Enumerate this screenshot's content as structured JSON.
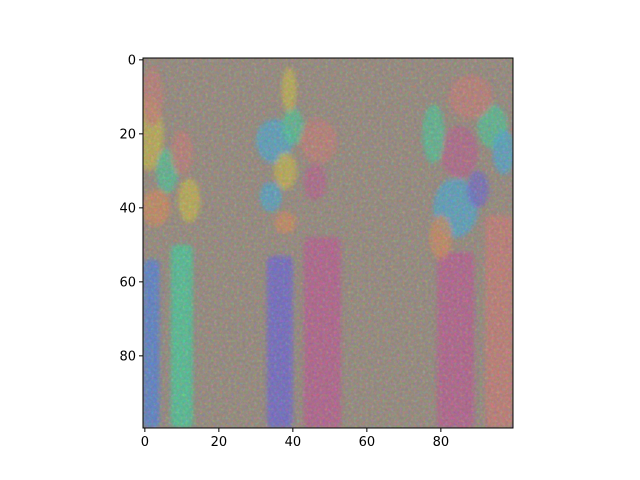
{
  "chart_data": {
    "type": "heatmap",
    "title": "",
    "xlabel": "",
    "ylabel": "",
    "xlim": [
      -0.5,
      99.5
    ],
    "ylim": [
      99.5,
      -0.5
    ],
    "y_axis_inverted": true,
    "grid": false,
    "x_ticks": [
      0,
      20,
      40,
      60,
      80
    ],
    "y_ticks": [
      0,
      20,
      40,
      60,
      80
    ],
    "x_tick_labels": [
      "0",
      "20",
      "40",
      "60",
      "80"
    ],
    "y_tick_labels": [
      "0",
      "20",
      "40",
      "60",
      "80"
    ],
    "image_shape": [
      100,
      100
    ],
    "colors": {
      "background": "#9a8a7a",
      "blue_streak": "#4a7fe0",
      "green_streak": "#3fd39a",
      "violet_streak": "#6a5fd8",
      "magenta_streak": "#c0558e",
      "salmon_streak": "#d07a70",
      "cyan_patch": "#3ab0e0",
      "yellow_patch": "#d6c23a",
      "orange_patch": "#e08a50"
    },
    "regions": [
      {
        "name": "left-blue-column",
        "x": [
          -0.5,
          4
        ],
        "y": [
          54,
          99.5
        ],
        "color": "blue_streak"
      },
      {
        "name": "left-green-column",
        "x": [
          7,
          13
        ],
        "y": [
          50,
          99.5
        ],
        "color": "green_streak"
      },
      {
        "name": "center-violet-column",
        "x": [
          33,
          40
        ],
        "y": [
          53,
          99.5
        ],
        "color": "violet_streak"
      },
      {
        "name": "center-magenta-column",
        "x": [
          43,
          53
        ],
        "y": [
          48,
          99.5
        ],
        "color": "magenta_streak"
      },
      {
        "name": "right-magenta-column",
        "x": [
          79,
          89
        ],
        "y": [
          52,
          99.5
        ],
        "color": "magenta_streak"
      },
      {
        "name": "right-salmon-column",
        "x": [
          92,
          99.5
        ],
        "y": [
          42,
          99.5
        ],
        "color": "salmon_streak"
      }
    ]
  }
}
